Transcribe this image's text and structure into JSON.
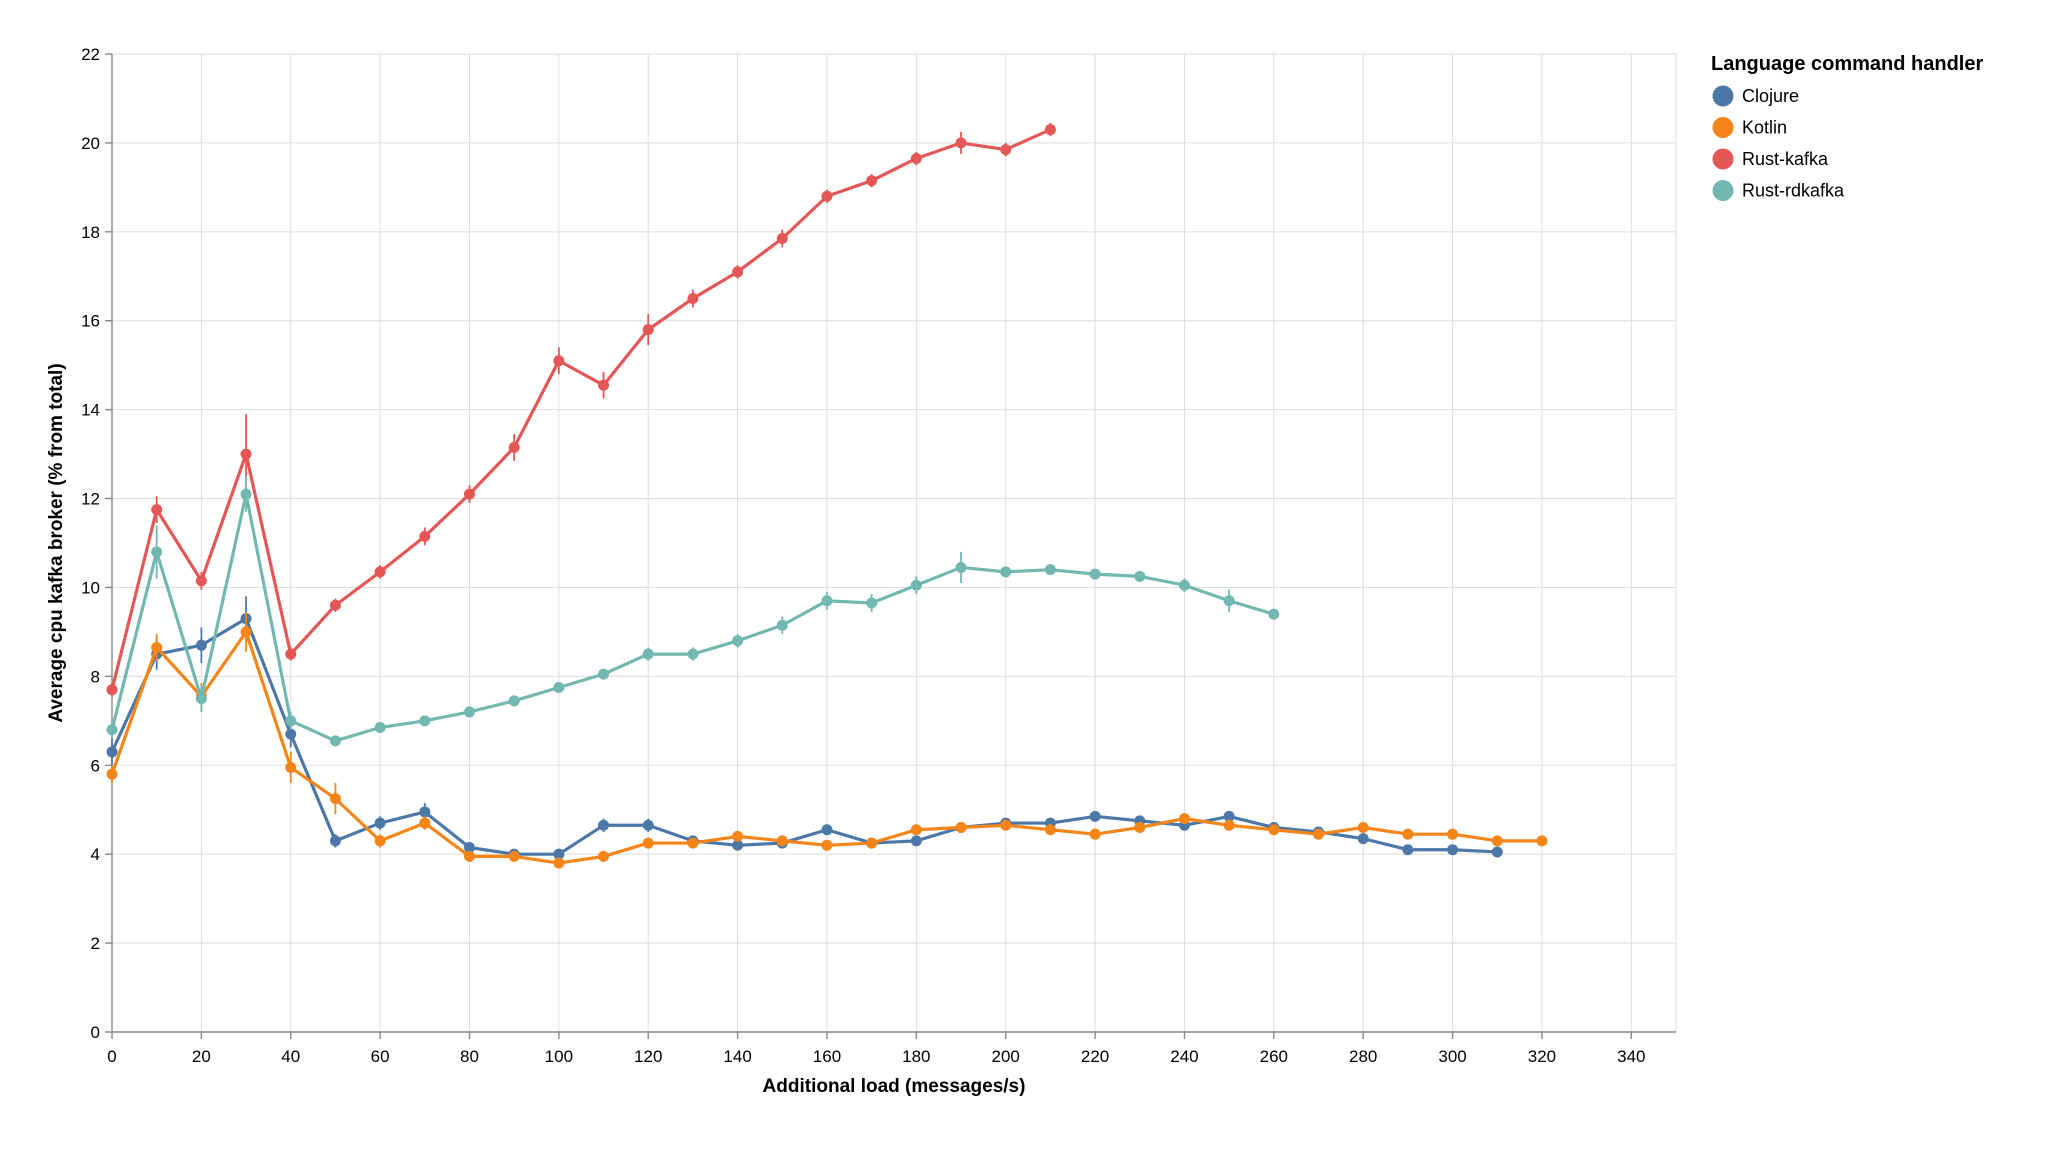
{
  "chart_data": {
    "type": "line",
    "xlabel": "Additional load (messages/s)",
    "ylabel": "Average cpu kafka broker (% from total)",
    "xlim": [
      0,
      350
    ],
    "ylim": [
      0,
      22
    ],
    "x_ticks": [
      0,
      20,
      40,
      60,
      80,
      100,
      120,
      140,
      160,
      180,
      200,
      220,
      240,
      260,
      280,
      300,
      320,
      340
    ],
    "y_ticks": [
      0,
      2,
      4,
      6,
      8,
      10,
      12,
      14,
      16,
      18,
      20,
      22
    ],
    "grid": true,
    "error_bars": true,
    "legend": {
      "title": "Language command handler",
      "position": "top-right"
    },
    "series": [
      {
        "name": "Clojure",
        "color": "#4c78a8",
        "x": [
          0,
          10,
          20,
          30,
          40,
          50,
          60,
          70,
          80,
          90,
          100,
          110,
          120,
          130,
          140,
          150,
          160,
          170,
          180,
          190,
          200,
          210,
          220,
          230,
          240,
          250,
          260,
          270,
          280,
          290,
          300,
          310
        ],
        "y": [
          6.3,
          8.5,
          8.7,
          9.3,
          6.7,
          4.3,
          4.7,
          4.95,
          4.15,
          4.0,
          4.0,
          4.65,
          4.65,
          4.3,
          4.2,
          4.25,
          4.55,
          4.25,
          4.3,
          4.6,
          4.7,
          4.7,
          4.85,
          4.75,
          4.65,
          4.85,
          4.6,
          4.5,
          4.35,
          4.1,
          4.1,
          4.05
        ],
        "err": [
          0.3,
          0.35,
          0.4,
          0.5,
          0.3,
          0.15,
          0.15,
          0.2,
          0.1,
          0.1,
          0.1,
          0.15,
          0.15,
          0.1,
          0.1,
          0.1,
          0.1,
          0.1,
          0.1,
          0.1,
          0.1,
          0.1,
          0.1,
          0.1,
          0.1,
          0.1,
          0.1,
          0.1,
          0.1,
          0.1,
          0.1,
          0.1
        ]
      },
      {
        "name": "Kotlin",
        "color": "#f58518",
        "x": [
          0,
          10,
          20,
          30,
          40,
          50,
          60,
          70,
          80,
          90,
          100,
          110,
          120,
          130,
          140,
          150,
          160,
          170,
          180,
          190,
          200,
          210,
          220,
          230,
          240,
          250,
          260,
          270,
          280,
          290,
          300,
          310,
          320
        ],
        "y": [
          5.8,
          8.65,
          7.55,
          9.0,
          5.95,
          5.25,
          4.3,
          4.7,
          3.95,
          3.95,
          3.8,
          3.95,
          4.25,
          4.25,
          4.4,
          4.3,
          4.2,
          4.25,
          4.55,
          4.6,
          4.65,
          4.55,
          4.45,
          4.6,
          4.8,
          4.65,
          4.55,
          4.45,
          4.6,
          4.45,
          4.45,
          4.3,
          4.3
        ],
        "err": [
          0.2,
          0.3,
          0.3,
          0.45,
          0.35,
          0.35,
          0.15,
          0.15,
          0.1,
          0.1,
          0.1,
          0.1,
          0.1,
          0.1,
          0.1,
          0.1,
          0.1,
          0.1,
          0.1,
          0.1,
          0.1,
          0.1,
          0.1,
          0.1,
          0.1,
          0.1,
          0.1,
          0.1,
          0.1,
          0.1,
          0.1,
          0.1,
          0.1
        ]
      },
      {
        "name": "Rust-kafka",
        "color": "#e45756",
        "x": [
          0,
          10,
          20,
          30,
          40,
          50,
          60,
          70,
          80,
          90,
          100,
          110,
          120,
          130,
          140,
          150,
          160,
          170,
          180,
          190,
          200,
          210
        ],
        "y": [
          7.7,
          11.75,
          10.15,
          13.0,
          8.5,
          9.6,
          10.35,
          11.15,
          12.1,
          13.15,
          15.1,
          14.55,
          15.8,
          16.5,
          17.1,
          17.85,
          18.8,
          19.15,
          19.65,
          20.0,
          19.85,
          20.3
        ],
        "err": [
          0.15,
          0.3,
          0.2,
          0.9,
          0.15,
          0.15,
          0.15,
          0.2,
          0.2,
          0.3,
          0.3,
          0.3,
          0.35,
          0.2,
          0.15,
          0.2,
          0.15,
          0.15,
          0.15,
          0.25,
          0.15,
          0.15
        ]
      },
      {
        "name": "Rust-rdkafka",
        "color": "#72b7b2",
        "x": [
          0,
          10,
          20,
          30,
          40,
          50,
          60,
          70,
          80,
          90,
          100,
          110,
          120,
          130,
          140,
          150,
          160,
          170,
          180,
          190,
          200,
          210,
          220,
          230,
          240,
          250,
          260
        ],
        "y": [
          6.8,
          10.8,
          7.5,
          12.1,
          7.0,
          6.55,
          6.85,
          7.0,
          7.2,
          7.45,
          7.75,
          8.05,
          8.5,
          8.5,
          8.8,
          9.15,
          9.7,
          9.65,
          10.05,
          10.45,
          10.35,
          10.4,
          10.3,
          10.25,
          10.05,
          9.7,
          9.4
        ],
        "err": [
          0.2,
          0.6,
          0.3,
          0.4,
          0.2,
          0.1,
          0.1,
          0.1,
          0.1,
          0.1,
          0.1,
          0.1,
          0.15,
          0.15,
          0.15,
          0.2,
          0.2,
          0.2,
          0.2,
          0.35,
          0.1,
          0.1,
          0.1,
          0.1,
          0.15,
          0.25,
          0.1
        ]
      }
    ]
  }
}
